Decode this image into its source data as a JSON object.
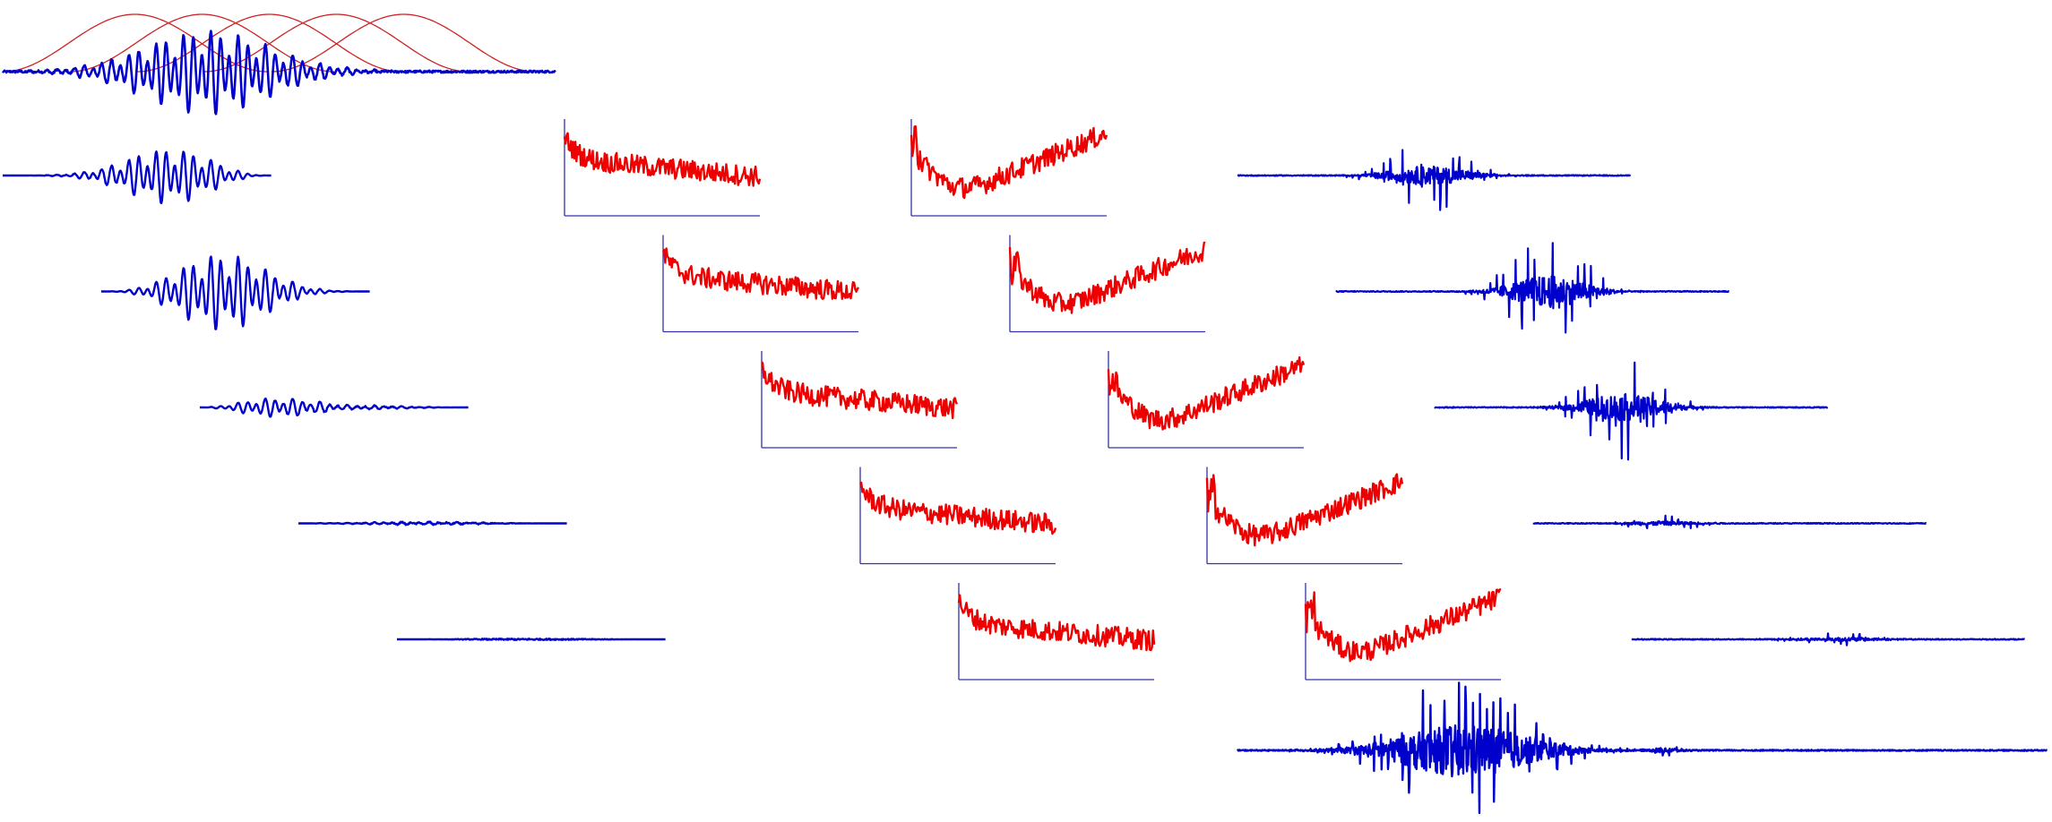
{
  "colors": {
    "signal": "#0000cc",
    "spectrum": "#ee0000",
    "window": "#cc2222",
    "axis": "#3333aa",
    "background": "#ffffff"
  },
  "diagram": {
    "description_free": true,
    "panels": {
      "windowed_segments": 5,
      "spectra_per_column": 5,
      "spectrum_columns": 2,
      "output_segments": 5,
      "hann_windows": 5
    }
  }
}
